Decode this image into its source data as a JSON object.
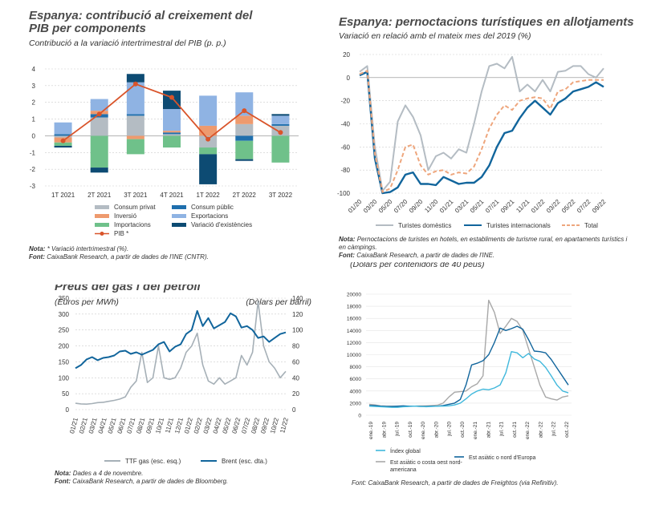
{
  "colors": {
    "consum_privat": "#b4bcc3",
    "consum_public": "#1f6fad",
    "inversio": "#ee9a6e",
    "exportacions": "#8fb3e3",
    "importacions": "#6fc18a",
    "existencies": "#0d4b73",
    "pib": "#d9542a",
    "domestics": "#b4bcc3",
    "internacionals": "#11659c",
    "total": "#eea67d",
    "ttf": "#a6b0b7",
    "brent": "#11659c",
    "global": "#40b8dc",
    "costa_oest": "#a8a8a8",
    "nord_europa": "#11659c"
  },
  "chart1": {
    "title": "Espanya: contribució al creixement del PIB per components",
    "subtitle": "Contribució a la variació intertrimestral del PIB (p. p.)",
    "legend": {
      "consum_privat": "Consum privat",
      "consum_public": "Consum públic",
      "inversio": "Inversió",
      "exportacions": "Exportacions",
      "importacions": "Importacions",
      "existencies": "Variació d'existències",
      "pib": "PIB *"
    },
    "note_label": "Nota:",
    "note_text": "* Variació intertrimestral (%).",
    "source_label": "Font:",
    "source_text": "CaixaBank Research, a partir de dades de l'INE (CNTR)."
  },
  "chart2": {
    "title": "Espanya: pernoctacions turístiques en allotjaments",
    "subtitle": "Variació en relació amb el mateix mes del 2019 (%)",
    "legend": {
      "domestics": "Turistes domèstics",
      "internacionals": "Turistes internacionals",
      "total": "Total"
    },
    "note_label": "Nota:",
    "note_text": "Pernoctacions de turistes en hotels, en establiments de turisme rural, en apartaments turístics i en càmpings.",
    "source_label": "Font:",
    "source_text": "CaixaBank Research, a partir de dades de l'INE."
  },
  "chart3": {
    "title": "Preus del gas i del petroli",
    "left_unit": "(Euros per MWh)",
    "right_unit": "(Dòlars per barril)",
    "legend": {
      "ttf": "TTF gas (esc. esq.)",
      "brent": "Brent (esc. dta.)"
    },
    "note_label": "Nota:",
    "note_text": "Dades a 4 de novembre.",
    "source_label": "Font:",
    "source_text": "CaixaBank Research, a partir de dades de Bloomberg."
  },
  "chart4": {
    "subtitle": "(Dòlars per contenidors de 40 peus)",
    "legend": {
      "global": "Índex global",
      "nord_europa": "Est asiàtic o nord d'Europa",
      "costa_oest": "Est asiàtic o costa oest nord-americana"
    },
    "source_label": "Font:",
    "source_text": "CaixaBank Research, a partir de dades de Freightos (via Refinitiv)."
  },
  "chart_data": [
    {
      "type": "bar",
      "title": "Espanya: contribució al creixement del PIB per components",
      "ylabel": "Contribució a la variació intertrimestral del PIB (p. p.)",
      "ylim": [
        -3,
        4
      ],
      "yticks": [
        "4",
        "3",
        "2",
        "1",
        "0",
        "-1",
        "-2",
        "-3"
      ],
      "categories": [
        "1T 2021",
        "2T 2021",
        "3T 2021",
        "4T 2021",
        "1T 2022",
        "2T 2022",
        "3T 2022"
      ],
      "stacked": true,
      "series": [
        {
          "name": "Consum privat",
          "key": "consum_privat",
          "values": [
            -0.1,
            1.1,
            1.2,
            0.1,
            -0.7,
            0.7,
            0.6
          ]
        },
        {
          "name": "Consum públic",
          "key": "consum_public",
          "values": [
            0.1,
            0.2,
            0.1,
            0.1,
            0.0,
            -0.3,
            0.1
          ]
        },
        {
          "name": "Inversió",
          "key": "inversio",
          "values": [
            -0.3,
            0.2,
            -0.2,
            0.1,
            0.6,
            0.5,
            0.0
          ]
        },
        {
          "name": "Exportacions",
          "key": "exportacions",
          "values": [
            0.7,
            0.7,
            1.9,
            1.3,
            1.8,
            1.4,
            0.5
          ]
        },
        {
          "name": "Importacions",
          "key": "importacions",
          "values": [
            -0.2,
            -1.9,
            -0.9,
            -0.7,
            -0.4,
            -1.1,
            -1.6
          ]
        },
        {
          "name": "Variació d'existències",
          "key": "existencies",
          "values": [
            -0.1,
            -0.3,
            0.5,
            1.1,
            -1.8,
            -0.1,
            0.1
          ]
        }
      ],
      "line": {
        "name": "PIB *",
        "key": "pib",
        "values": [
          -0.3,
          1.3,
          3.1,
          2.3,
          -0.2,
          1.5,
          0.2
        ]
      }
    },
    {
      "type": "line",
      "title": "Espanya: pernoctacions turístiques en allotjaments",
      "ylabel": "Variació en relació amb el mateix mes del 2019 (%)",
      "ylim": [
        -100,
        20
      ],
      "yticks": [
        "20",
        "0",
        "-20",
        "-40",
        "-60",
        "-80",
        "-100"
      ],
      "x": [
        "01/20",
        "02/20",
        "03/20",
        "04/20",
        "05/20",
        "06/20",
        "07/20",
        "08/20",
        "09/20",
        "10/20",
        "11/20",
        "12/20",
        "01/21",
        "02/21",
        "03/21",
        "04/21",
        "05/21",
        "06/21",
        "07/21",
        "08/21",
        "09/21",
        "10/21",
        "11/21",
        "12/21",
        "01/22",
        "02/22",
        "03/22",
        "04/22",
        "05/22",
        "06/22",
        "07/22",
        "08/22",
        "09/22"
      ],
      "xticklabels": [
        "01/20",
        "03/20",
        "05/20",
        "07/20",
        "09/20",
        "11/20",
        "01/21",
        "03/21",
        "05/21",
        "07/21",
        "09/21",
        "11/21",
        "01/22",
        "03/22",
        "05/22",
        "07/22",
        "09/22"
      ],
      "series": [
        {
          "name": "Turistes domèstics",
          "key": "domestics",
          "values": [
            5,
            10,
            -60,
            -98,
            -90,
            -38,
            -24,
            -34,
            -50,
            -80,
            -68,
            -65,
            -70,
            -62,
            -65,
            -40,
            -12,
            10,
            12,
            8,
            18,
            -12,
            -6,
            -12,
            -2,
            -12,
            5,
            6,
            10,
            10,
            3,
            0,
            8
          ]
        },
        {
          "name": "Turistes internacionals",
          "key": "internacionals",
          "values": [
            2,
            5,
            -70,
            -100,
            -99,
            -95,
            -84,
            -82,
            -92,
            -92,
            -93,
            -86,
            -89,
            -92,
            -91,
            -91,
            -86,
            -76,
            -60,
            -48,
            -46,
            -35,
            -26,
            -20,
            -26,
            -32,
            -22,
            -18,
            -12,
            -10,
            -8,
            -4,
            -8
          ]
        },
        {
          "name": "Total",
          "key": "total",
          "values": [
            3,
            6,
            -66,
            -99,
            -96,
            -80,
            -60,
            -58,
            -76,
            -84,
            -81,
            -80,
            -84,
            -82,
            -83,
            -77,
            -62,
            -44,
            -32,
            -24,
            -28,
            -20,
            -18,
            -17,
            -18,
            -27,
            -12,
            -10,
            -4,
            -3,
            -2,
            -2,
            -2
          ],
          "dashed": true
        }
      ]
    },
    {
      "type": "line",
      "title": "Preus del gas i del petroli",
      "ylabel": "(Euros per MWh)",
      "ylabel_right": "(Dòlars per barril)",
      "ylim": [
        0,
        350
      ],
      "ylim_right": [
        0,
        140
      ],
      "yticks": [
        "350",
        "300",
        "250",
        "200",
        "150",
        "100",
        "50",
        "0"
      ],
      "yticks_right": [
        "140",
        "120",
        "100",
        "80",
        "60",
        "40",
        "20",
        "0"
      ],
      "xticklabels": [
        "01/21",
        "02/21",
        "03/21",
        "04/21",
        "05/21",
        "06/21",
        "07/21",
        "08/21",
        "09/21",
        "10/21",
        "11/21",
        "12/21",
        "01/22",
        "02/22",
        "03/22",
        "04/22",
        "05/22",
        "06/22",
        "07/22",
        "08/22",
        "09/22",
        "10/22",
        "11/22"
      ],
      "series": [
        {
          "name": "TTF gas (esc. esq.)",
          "key": "ttf",
          "axis": "left",
          "values": [
            20,
            18,
            17,
            19,
            22,
            23,
            26,
            29,
            33,
            40,
            70,
            90,
            180,
            85,
            100,
            200,
            100,
            95,
            100,
            130,
            180,
            200,
            240,
            140,
            90,
            80,
            100,
            80,
            90,
            100,
            170,
            140,
            180,
            340,
            200,
            150,
            130,
            100,
            120
          ]
        },
        {
          "name": "Brent (esc. dta.)",
          "key": "brent",
          "axis": "right",
          "values": [
            52,
            56,
            63,
            66,
            62,
            65,
            66,
            68,
            73,
            74,
            70,
            72,
            69,
            72,
            75,
            82,
            85,
            73,
            79,
            82,
            95,
            100,
            124,
            105,
            115,
            102,
            106,
            110,
            121,
            117,
            103,
            105,
            100,
            90,
            92,
            85,
            90,
            95,
            97
          ]
        }
      ]
    },
    {
      "type": "line",
      "ylabel": "(Dòlars per contenidors de 40 peus)",
      "ylim": [
        0,
        20000
      ],
      "yticks": [
        "20000",
        "18000",
        "16000",
        "14000",
        "12000",
        "10000",
        "8000",
        "6000",
        "4000",
        "2000",
        "0"
      ],
      "xticklabels": [
        "ene.-19",
        "abr.-19",
        "jul.-19",
        "oct.-19",
        "ene.-20",
        "abr.-20",
        "jul.-20",
        "oct.-20",
        "ene.-21",
        "abr.-21",
        "jul.-21",
        "oct.-21",
        "ene.-22",
        "abr.-22",
        "jul.-22",
        "oct.-22"
      ],
      "series": [
        {
          "name": "Índex global",
          "key": "global",
          "values": [
            1500,
            1450,
            1400,
            1350,
            1300,
            1300,
            1400,
            1450,
            1500,
            1450,
            1400,
            1450,
            1500,
            1500,
            1550,
            1700,
            2000,
            2700,
            3500,
            4000,
            4300,
            4200,
            4500,
            5000,
            7000,
            10500,
            10300,
            9500,
            10200,
            9300,
            8900,
            7900,
            6500,
            5000,
            4000,
            3700
          ]
        },
        {
          "name": "Est asiàtic o nord d'Europa",
          "key": "nord_europa",
          "values": [
            1600,
            1600,
            1500,
            1450,
            1450,
            1500,
            1550,
            1500,
            1500,
            1450,
            1450,
            1500,
            1500,
            1600,
            1800,
            2000,
            2600,
            5000,
            8300,
            8600,
            9000,
            10000,
            12000,
            14400,
            14000,
            14300,
            14700,
            14200,
            12500,
            10600,
            10500,
            10300,
            9200,
            7800,
            6400,
            5000
          ]
        },
        {
          "name": "Est asiàtic o costa oest nord-americana",
          "key": "costa_oest",
          "values": [
            1800,
            1700,
            1550,
            1500,
            1500,
            1450,
            1500,
            1500,
            1500,
            1550,
            1550,
            1600,
            1650,
            2000,
            3000,
            3800,
            3900,
            4000,
            4700,
            5200,
            6500,
            19000,
            17000,
            13500,
            14700,
            16000,
            15500,
            14000,
            11000,
            8000,
            5000,
            3000,
            2700,
            2500,
            3000,
            3200
          ]
        }
      ]
    }
  ]
}
